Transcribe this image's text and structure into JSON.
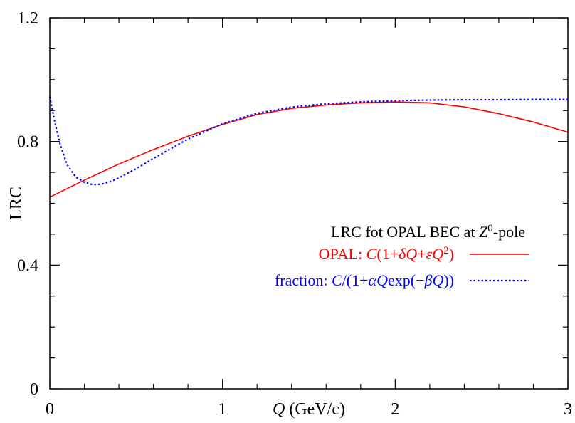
{
  "chart_data": {
    "type": "line",
    "title": "",
    "xlabel_var": "Q",
    "xlabel_unit": "(GeV/c)",
    "ylabel": "LRC",
    "xlim": [
      0,
      3
    ],
    "ylim": [
      0,
      1.2
    ],
    "x_ticks": [
      "0",
      "1",
      "2",
      "3"
    ],
    "y_ticks": [
      "0",
      "0.4",
      "0.8",
      "1.2"
    ],
    "grid": false,
    "legend": {
      "position": "right",
      "heading_prefix": "LRC fot OPAL BEC at ",
      "heading_var": "Z",
      "heading_sup": "0",
      "heading_suffix": "-pole"
    },
    "series": [
      {
        "label_prefix": "OPAL: ",
        "formula": [
          {
            "t": "C",
            "i": true
          },
          {
            "t": "(1+"
          },
          {
            "t": "δQ",
            "i": true
          },
          {
            "t": "+"
          },
          {
            "t": "εQ",
            "i": true
          },
          {
            "t": "2",
            "sup": true
          },
          {
            "t": ")"
          }
        ],
        "color": "#ff0000",
        "dash": "solid",
        "x": [
          0,
          0.2,
          0.4,
          0.6,
          0.8,
          1.0,
          1.2,
          1.4,
          1.6,
          1.8,
          2.0,
          2.2,
          2.4,
          2.6,
          2.8,
          3.0
        ],
        "y": [
          0.62,
          0.675,
          0.727,
          0.774,
          0.817,
          0.855,
          0.887,
          0.907,
          0.918,
          0.925,
          0.928,
          0.925,
          0.912,
          0.89,
          0.863,
          0.83
        ]
      },
      {
        "label_prefix": "fraction: ",
        "formula": [
          {
            "t": "C",
            "i": true
          },
          {
            "t": "/(1+"
          },
          {
            "t": "αQ",
            "i": true
          },
          {
            "t": "exp(−"
          },
          {
            "t": "βQ",
            "i": true
          },
          {
            "t": "))"
          }
        ],
        "color": "#0000ff",
        "dash": "dotted",
        "x": [
          0,
          0.03,
          0.06,
          0.1,
          0.15,
          0.2,
          0.25,
          0.3,
          0.35,
          0.4,
          0.5,
          0.6,
          0.8,
          1.0,
          1.2,
          1.4,
          1.6,
          1.8,
          2.0,
          2.2,
          2.4,
          2.6,
          2.8,
          3.0
        ],
        "y": [
          0.945,
          0.86,
          0.79,
          0.725,
          0.685,
          0.668,
          0.66,
          0.662,
          0.67,
          0.682,
          0.712,
          0.745,
          0.808,
          0.857,
          0.891,
          0.911,
          0.922,
          0.928,
          0.932,
          0.934,
          0.935,
          0.935,
          0.936,
          0.936
        ]
      }
    ]
  }
}
